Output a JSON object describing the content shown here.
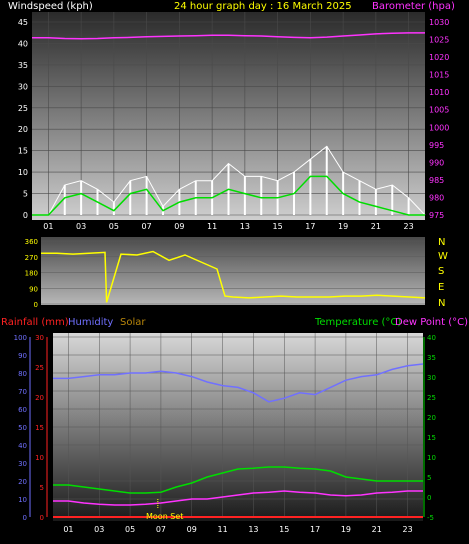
{
  "colors": {
    "background": "#000000",
    "windspeed": "#ffffff",
    "wind_avg": "#00dd00",
    "barometer": "#ff33ff",
    "direction": "#ffff00",
    "rainfall": "#ff2222",
    "humidity": "#7070ff",
    "solar": "#b8860b",
    "temperature": "#00dd00",
    "dewpoint": "#ff33ff",
    "moon": "#ffff00",
    "grid": "#4a4a4a"
  },
  "header": {
    "windspeed_label": "Windspeed (kph)",
    "title": "24 hour graph day : 16 March 2025",
    "barometer_label": "Barometer (hpa)"
  },
  "middle": {
    "compass": [
      "N",
      "W",
      "S",
      "E",
      "N"
    ]
  },
  "bottom_header": {
    "rainfall_label": "Rainfall (mm)",
    "humidity_label": "Humidity",
    "solar_label": "Solar",
    "temperature_label": "Temperature (°C)",
    "dewpoint_label": "Dew Point (°C)"
  },
  "annotation": {
    "moon_set": "Moon Set"
  },
  "chart_data": [
    {
      "type": "line",
      "series": [
        {
          "name": "Windspeed (kph)",
          "x": [
            0,
            1,
            2,
            3,
            4,
            5,
            6,
            7,
            8,
            9,
            10,
            11,
            12,
            13,
            14,
            15,
            16,
            17,
            18,
            19,
            20,
            21,
            22,
            23,
            24
          ],
          "values": [
            0,
            0,
            7,
            8,
            6,
            3,
            8,
            9,
            2,
            6,
            8,
            8,
            12,
            9,
            9,
            8,
            10,
            13,
            16,
            10,
            8,
            6,
            7,
            4,
            0
          ]
        },
        {
          "name": "Wind average (kph)",
          "x": [
            0,
            1,
            2,
            3,
            4,
            5,
            6,
            7,
            8,
            9,
            10,
            11,
            12,
            13,
            14,
            15,
            16,
            17,
            18,
            19,
            20,
            21,
            22,
            23,
            24
          ],
          "values": [
            0,
            0,
            4,
            5,
            3,
            1,
            5,
            6,
            1,
            3,
            4,
            4,
            6,
            5,
            4,
            4,
            5,
            9,
            9,
            5,
            3,
            2,
            1,
            0,
            0
          ]
        },
        {
          "name": "Barometer (hpa)",
          "x": [
            0,
            1,
            2,
            3,
            4,
            5,
            6,
            7,
            8,
            9,
            10,
            11,
            12,
            13,
            14,
            15,
            16,
            17,
            18,
            19,
            20,
            21,
            22,
            23,
            24
          ],
          "values": [
            1025.5,
            1025.5,
            1025.3,
            1025.2,
            1025.3,
            1025.5,
            1025.6,
            1025.8,
            1025.9,
            1026,
            1026.1,
            1026.2,
            1026.2,
            1026.1,
            1026,
            1025.8,
            1025.6,
            1025.5,
            1025.7,
            1026,
            1026.3,
            1026.6,
            1026.8,
            1026.9,
            1026.9
          ]
        }
      ],
      "left_axis": {
        "ylim": [
          0,
          45
        ],
        "ticks": [
          0,
          5,
          10,
          15,
          20,
          25,
          30,
          35,
          40,
          45
        ]
      },
      "right_axis": {
        "ylim": [
          975,
          1030
        ],
        "ticks": [
          975,
          980,
          985,
          990,
          995,
          1000,
          1005,
          1010,
          1015,
          1020,
          1025,
          1030
        ]
      },
      "x_ticks": [
        "01",
        "03",
        "05",
        "07",
        "09",
        "11",
        "13",
        "15",
        "17",
        "19",
        "21",
        "23"
      ],
      "xlim": [
        0,
        24
      ],
      "grid": true
    },
    {
      "type": "line",
      "series": [
        {
          "x": [
            0,
            1,
            2,
            3,
            4,
            4.1,
            5,
            6,
            7,
            8,
            9,
            10,
            11,
            11.5,
            12,
            13,
            14,
            15,
            16,
            17,
            18,
            19,
            20,
            21,
            22,
            23,
            24
          ],
          "values": [
            290,
            290,
            285,
            290,
            295,
            10,
            285,
            280,
            300,
            250,
            280,
            240,
            200,
            45,
            40,
            35,
            40,
            45,
            40,
            40,
            40,
            45,
            45,
            50,
            45,
            40,
            35
          ]
        }
      ],
      "left_axis": {
        "ylim": [
          0,
          360
        ],
        "ticks": [
          0,
          90,
          180,
          270,
          360
        ]
      },
      "right_axis_labels": [
        "N",
        "W",
        "S",
        "E",
        "N"
      ],
      "xlim": [
        0,
        24
      ]
    },
    {
      "type": "line",
      "series": [
        {
          "name": "Humidity",
          "x": [
            0,
            1,
            2,
            3,
            4,
            5,
            6,
            7,
            8,
            9,
            10,
            11,
            12,
            13,
            14,
            15,
            16,
            17,
            18,
            19,
            20,
            21,
            22,
            23,
            24
          ],
          "values": [
            77,
            77,
            78,
            79,
            79,
            80,
            80,
            81,
            80,
            78,
            75,
            73,
            72,
            69,
            64,
            66,
            69,
            68,
            72,
            76,
            78,
            79,
            82,
            84,
            85
          ]
        },
        {
          "name": "Temperature (°C)",
          "x": [
            0,
            1,
            2,
            3,
            4,
            5,
            6,
            7,
            8,
            9,
            10,
            11,
            12,
            13,
            14,
            15,
            16,
            17,
            18,
            19,
            20,
            21,
            22,
            23,
            24
          ],
          "values": [
            3,
            3,
            2.5,
            2,
            1.5,
            1,
            1,
            1.2,
            2.5,
            3.5,
            5,
            6,
            7,
            7.2,
            7.5,
            7.5,
            7.2,
            7,
            6.5,
            5,
            4.5,
            4,
            4,
            4,
            4
          ]
        },
        {
          "name": "Dew Point (°C)",
          "x": [
            0,
            1,
            2,
            3,
            4,
            5,
            6,
            7,
            8,
            9,
            10,
            11,
            12,
            13,
            14,
            15,
            16,
            17,
            18,
            19,
            20,
            21,
            22,
            23,
            24
          ],
          "values": [
            -1,
            -1,
            -1.5,
            -1.8,
            -2,
            -2,
            -1.8,
            -1.5,
            -1,
            -0.5,
            -0.5,
            0,
            0.5,
            1,
            1.2,
            1.5,
            1.2,
            1,
            0.5,
            0.3,
            0.5,
            1,
            1.2,
            1.5,
            1.5
          ]
        },
        {
          "name": "Rainfall (mm)",
          "x": [
            0,
            24
          ],
          "values": [
            0,
            0
          ]
        }
      ],
      "left_axis": {
        "ylim": [
          0,
          100
        ],
        "ticks": [
          0,
          10,
          20,
          30,
          40,
          50,
          60,
          70,
          80,
          90,
          100
        ]
      },
      "rain_axis": {
        "ylim": [
          0,
          30
        ],
        "ticks": [
          0,
          5,
          10,
          15,
          20,
          25,
          30
        ]
      },
      "right_axis": {
        "ylim": [
          -5,
          40
        ],
        "ticks": [
          -5,
          0,
          5,
          10,
          15,
          20,
          25,
          30,
          35,
          40
        ]
      },
      "x_ticks": [
        "01",
        "03",
        "05",
        "07",
        "09",
        "11",
        "13",
        "15",
        "17",
        "19",
        "21",
        "23"
      ],
      "xlim": [
        0,
        24
      ],
      "annotations": [
        "Moon Set"
      ]
    }
  ]
}
